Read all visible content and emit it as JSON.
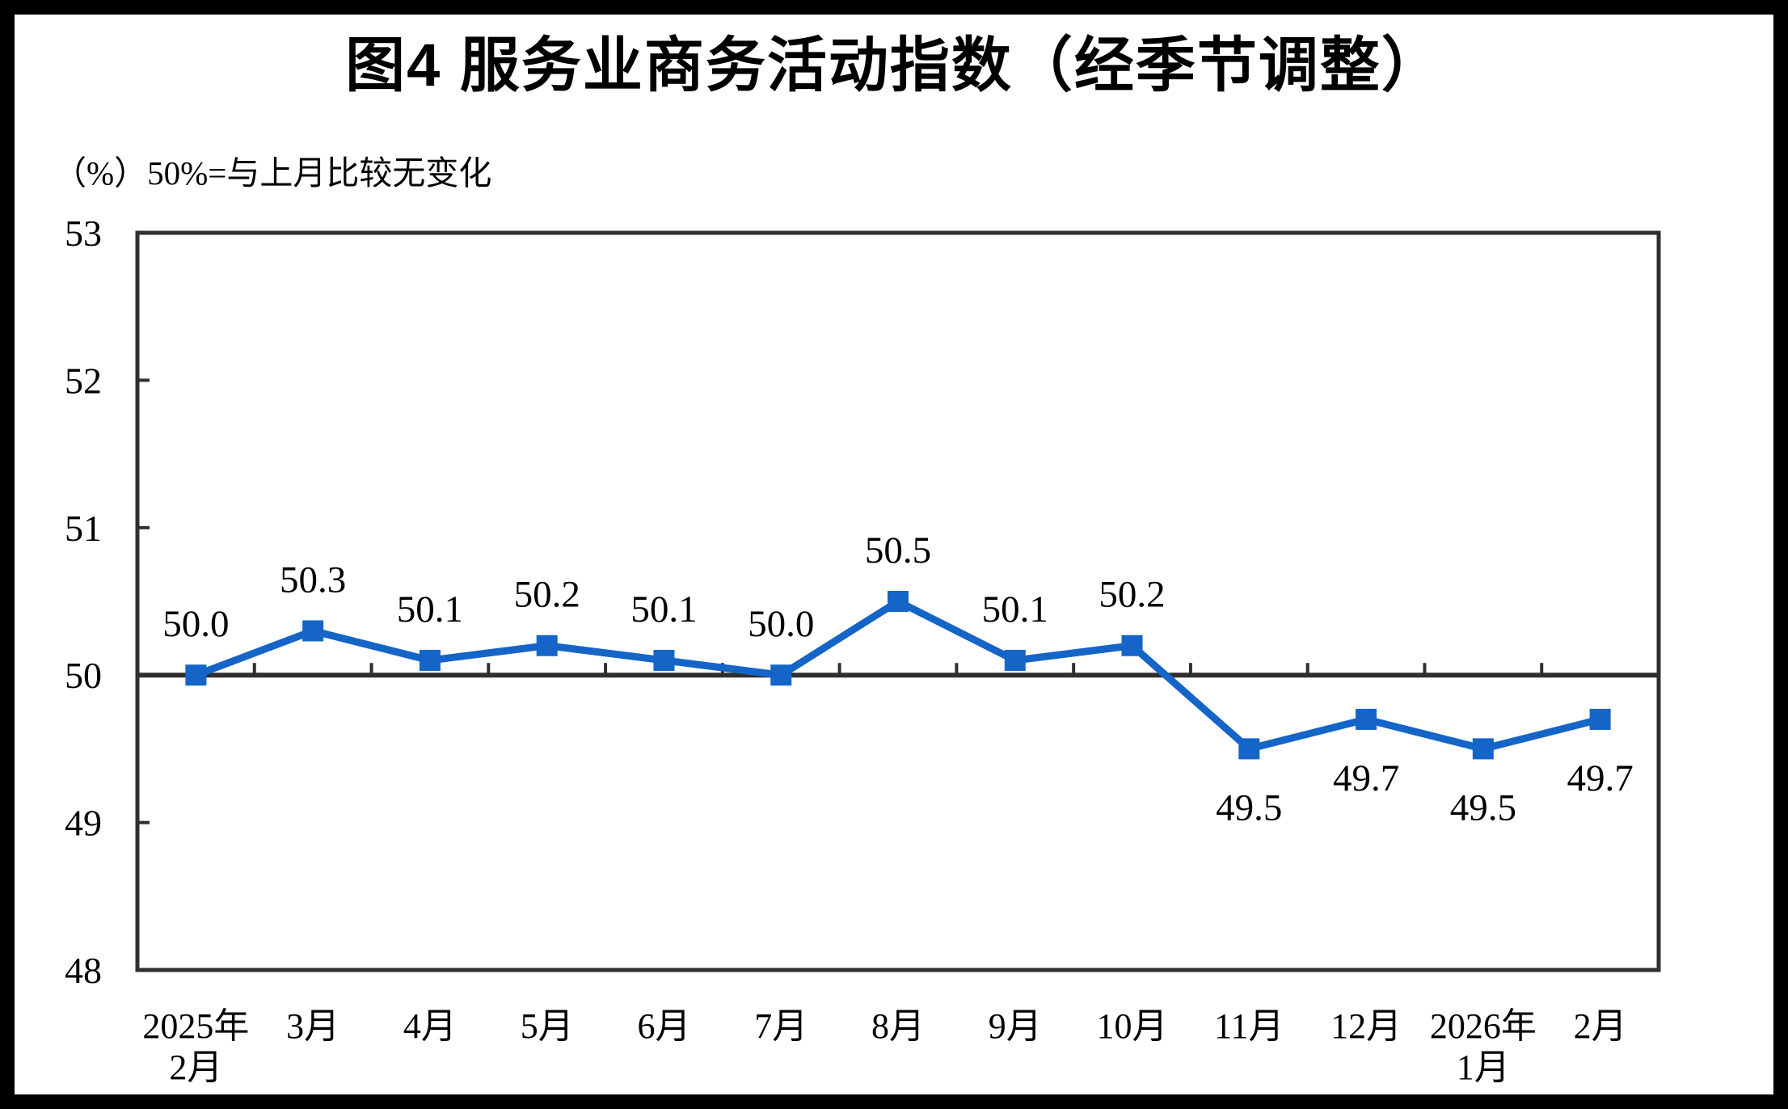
{
  "figure": {
    "background_color": "#ffffff",
    "frame_color": "#000000"
  },
  "chart_data": {
    "type": "line",
    "title": "图4  服务业商务活动指数（经季节调整）",
    "unit_note": "（%）50%=与上月比较无变化",
    "categories": [
      [
        "2025年",
        "2月"
      ],
      [
        "3月"
      ],
      [
        "4月"
      ],
      [
        "5月"
      ],
      [
        "6月"
      ],
      [
        "7月"
      ],
      [
        "8月"
      ],
      [
        "9月"
      ],
      [
        "10月"
      ],
      [
        "11月"
      ],
      [
        "12月"
      ],
      [
        "2026年",
        "1月"
      ],
      [
        "2月"
      ]
    ],
    "values": [
      50.0,
      50.3,
      50.1,
      50.2,
      50.1,
      50.0,
      50.5,
      50.1,
      50.2,
      49.5,
      49.7,
      49.5,
      49.7
    ],
    "data_labels": [
      "50.0",
      "50.3",
      "50.1",
      "50.2",
      "50.1",
      "50.0",
      "50.5",
      "50.1",
      "50.2",
      "49.5",
      "49.7",
      "49.5",
      "49.7"
    ],
    "ylim": [
      48,
      53
    ],
    "yticks": [
      48,
      49,
      50,
      51,
      52,
      53
    ],
    "axis_crosses_at": 50,
    "grid": false,
    "legend_position": "none",
    "line_color": "#1565C8",
    "marker_shape": "square",
    "axis_color": "#2F2F2F",
    "text_color": "#000000"
  }
}
